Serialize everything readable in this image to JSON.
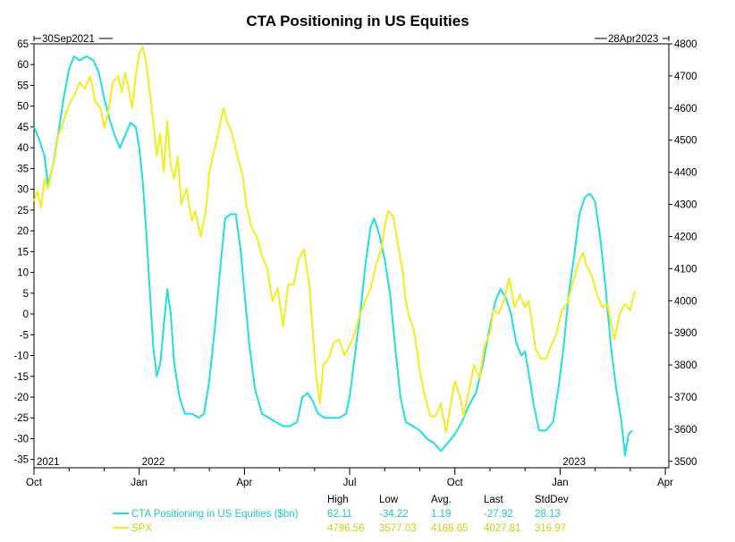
{
  "chart_data": {
    "type": "line",
    "title": "CTA Positioning in US Equities",
    "start_label": "30Sep2021",
    "end_label": "28Apr2023",
    "left_axis": {
      "ylim": [
        -37,
        65
      ],
      "ticks": [
        65,
        60,
        55,
        50,
        45,
        40,
        35,
        30,
        25,
        20,
        15,
        10,
        5,
        0,
        -5,
        -10,
        -15,
        -20,
        -25,
        -30,
        -35
      ]
    },
    "right_axis": {
      "ylim": [
        3480,
        4800
      ],
      "ticks": [
        4800,
        4700,
        4600,
        4500,
        4400,
        4300,
        4200,
        4100,
        4000,
        3900,
        3800,
        3700,
        3600,
        3500
      ]
    },
    "x_axis": {
      "range_months": [
        0,
        18.1
      ],
      "month_labels": [
        {
          "m": 0,
          "label": "Oct"
        },
        {
          "m": 3,
          "label": "Jan"
        },
        {
          "m": 6,
          "label": "Apr"
        },
        {
          "m": 9,
          "label": "Jul"
        },
        {
          "m": 12,
          "label": "Oct"
        },
        {
          "m": 15,
          "label": "Jan"
        },
        {
          "m": 18,
          "label": "Apr"
        }
      ],
      "year_labels": [
        {
          "m": 0,
          "label": "2021"
        },
        {
          "m": 3,
          "label": "2022"
        },
        {
          "m": 15,
          "label": "2023"
        }
      ]
    },
    "series": [
      {
        "name": "CTA Positioning in US Equities ($bn)",
        "axis": "left",
        "color": "#22dede",
        "points": [
          [
            0.0,
            45
          ],
          [
            0.15,
            42
          ],
          [
            0.3,
            38
          ],
          [
            0.4,
            31
          ],
          [
            0.55,
            36
          ],
          [
            0.7,
            44
          ],
          [
            0.85,
            52
          ],
          [
            1.0,
            59
          ],
          [
            1.15,
            62
          ],
          [
            1.3,
            61
          ],
          [
            1.5,
            62
          ],
          [
            1.7,
            61
          ],
          [
            1.85,
            58
          ],
          [
            2.0,
            52
          ],
          [
            2.15,
            47
          ],
          [
            2.3,
            43
          ],
          [
            2.45,
            40
          ],
          [
            2.6,
            43
          ],
          [
            2.75,
            46
          ],
          [
            2.9,
            45
          ],
          [
            3.0,
            40
          ],
          [
            3.1,
            32
          ],
          [
            3.2,
            20
          ],
          [
            3.3,
            6
          ],
          [
            3.4,
            -8
          ],
          [
            3.5,
            -15
          ],
          [
            3.6,
            -12
          ],
          [
            3.7,
            -3
          ],
          [
            3.8,
            6
          ],
          [
            3.9,
            0
          ],
          [
            4.0,
            -12
          ],
          [
            4.15,
            -20
          ],
          [
            4.3,
            -24
          ],
          [
            4.5,
            -24
          ],
          [
            4.7,
            -25
          ],
          [
            4.85,
            -24
          ],
          [
            5.0,
            -16
          ],
          [
            5.15,
            -4
          ],
          [
            5.3,
            10
          ],
          [
            5.45,
            23
          ],
          [
            5.6,
            24
          ],
          [
            5.75,
            24
          ],
          [
            5.9,
            15
          ],
          [
            6.0,
            5
          ],
          [
            6.15,
            -8
          ],
          [
            6.3,
            -18
          ],
          [
            6.5,
            -24
          ],
          [
            6.7,
            -25
          ],
          [
            6.9,
            -26
          ],
          [
            7.1,
            -27
          ],
          [
            7.3,
            -27
          ],
          [
            7.5,
            -26
          ],
          [
            7.65,
            -20
          ],
          [
            7.8,
            -19
          ],
          [
            7.95,
            -21
          ],
          [
            8.1,
            -24
          ],
          [
            8.3,
            -25
          ],
          [
            8.5,
            -25
          ],
          [
            8.7,
            -25
          ],
          [
            8.9,
            -24
          ],
          [
            9.0,
            -20
          ],
          [
            9.15,
            -10
          ],
          [
            9.3,
            0
          ],
          [
            9.45,
            12
          ],
          [
            9.6,
            21
          ],
          [
            9.7,
            23
          ],
          [
            9.85,
            19
          ],
          [
            10.0,
            13
          ],
          [
            10.15,
            5
          ],
          [
            10.3,
            -8
          ],
          [
            10.45,
            -20
          ],
          [
            10.6,
            -26
          ],
          [
            10.8,
            -27
          ],
          [
            11.0,
            -28
          ],
          [
            11.2,
            -30
          ],
          [
            11.4,
            -31
          ],
          [
            11.6,
            -33
          ],
          [
            11.8,
            -31
          ],
          [
            12.0,
            -29
          ],
          [
            12.2,
            -26
          ],
          [
            12.4,
            -22
          ],
          [
            12.6,
            -19
          ],
          [
            12.8,
            -12
          ],
          [
            13.0,
            -3
          ],
          [
            13.15,
            3
          ],
          [
            13.3,
            6
          ],
          [
            13.45,
            4
          ],
          [
            13.6,
            0
          ],
          [
            13.75,
            -7
          ],
          [
            13.9,
            -10
          ],
          [
            14.0,
            -9
          ],
          [
            14.1,
            -14
          ],
          [
            14.25,
            -22
          ],
          [
            14.4,
            -28
          ],
          [
            14.6,
            -28
          ],
          [
            14.8,
            -26
          ],
          [
            14.95,
            -18
          ],
          [
            15.1,
            -8
          ],
          [
            15.25,
            5
          ],
          [
            15.4,
            14
          ],
          [
            15.55,
            24
          ],
          [
            15.7,
            28
          ],
          [
            15.85,
            29
          ],
          [
            16.0,
            27
          ],
          [
            16.15,
            18
          ],
          [
            16.3,
            6
          ],
          [
            16.45,
            -8
          ],
          [
            16.6,
            -18
          ],
          [
            16.75,
            -26
          ],
          [
            16.85,
            -34
          ],
          [
            16.95,
            -29
          ],
          [
            17.05,
            -28
          ]
        ]
      },
      {
        "name": "SPX",
        "axis": "right",
        "color": "#f0ee1f",
        "points": [
          [
            0.0,
            4310
          ],
          [
            0.1,
            4340
          ],
          [
            0.2,
            4290
          ],
          [
            0.3,
            4380
          ],
          [
            0.4,
            4350
          ],
          [
            0.5,
            4400
          ],
          [
            0.6,
            4450
          ],
          [
            0.7,
            4520
          ],
          [
            0.85,
            4560
          ],
          [
            1.0,
            4610
          ],
          [
            1.15,
            4640
          ],
          [
            1.3,
            4680
          ],
          [
            1.45,
            4660
          ],
          [
            1.6,
            4700
          ],
          [
            1.75,
            4620
          ],
          [
            1.9,
            4600
          ],
          [
            2.0,
            4540
          ],
          [
            2.1,
            4580
          ],
          [
            2.25,
            4680
          ],
          [
            2.4,
            4700
          ],
          [
            2.5,
            4650
          ],
          [
            2.6,
            4710
          ],
          [
            2.7,
            4660
          ],
          [
            2.8,
            4600
          ],
          [
            2.9,
            4700
          ],
          [
            3.0,
            4770
          ],
          [
            3.1,
            4790
          ],
          [
            3.2,
            4740
          ],
          [
            3.3,
            4650
          ],
          [
            3.4,
            4560
          ],
          [
            3.5,
            4450
          ],
          [
            3.6,
            4520
          ],
          [
            3.7,
            4400
          ],
          [
            3.8,
            4560
          ],
          [
            3.9,
            4420
          ],
          [
            4.0,
            4380
          ],
          [
            4.1,
            4450
          ],
          [
            4.2,
            4300
          ],
          [
            4.35,
            4350
          ],
          [
            4.5,
            4250
          ],
          [
            4.6,
            4280
          ],
          [
            4.75,
            4200
          ],
          [
            4.9,
            4280
          ],
          [
            5.0,
            4400
          ],
          [
            5.1,
            4450
          ],
          [
            5.25,
            4520
          ],
          [
            5.4,
            4600
          ],
          [
            5.5,
            4560
          ],
          [
            5.65,
            4520
          ],
          [
            5.8,
            4450
          ],
          [
            5.95,
            4390
          ],
          [
            6.05,
            4300
          ],
          [
            6.2,
            4230
          ],
          [
            6.35,
            4200
          ],
          [
            6.5,
            4140
          ],
          [
            6.65,
            4100
          ],
          [
            6.8,
            4000
          ],
          [
            6.95,
            4040
          ],
          [
            7.1,
            3920
          ],
          [
            7.25,
            4050
          ],
          [
            7.4,
            4050
          ],
          [
            7.55,
            4130
          ],
          [
            7.7,
            4160
          ],
          [
            7.85,
            4050
          ],
          [
            7.95,
            3900
          ],
          [
            8.05,
            3760
          ],
          [
            8.15,
            3680
          ],
          [
            8.25,
            3800
          ],
          [
            8.4,
            3820
          ],
          [
            8.55,
            3870
          ],
          [
            8.7,
            3880
          ],
          [
            8.85,
            3830
          ],
          [
            9.0,
            3860
          ],
          [
            9.15,
            3900
          ],
          [
            9.3,
            3960
          ],
          [
            9.45,
            4000
          ],
          [
            9.6,
            4040
          ],
          [
            9.75,
            4110
          ],
          [
            9.9,
            4160
          ],
          [
            10.0,
            4230
          ],
          [
            10.1,
            4280
          ],
          [
            10.25,
            4260
          ],
          [
            10.4,
            4160
          ],
          [
            10.5,
            4100
          ],
          [
            10.6,
            4000
          ],
          [
            10.7,
            3950
          ],
          [
            10.85,
            3900
          ],
          [
            11.0,
            3780
          ],
          [
            11.15,
            3700
          ],
          [
            11.3,
            3640
          ],
          [
            11.45,
            3640
          ],
          [
            11.6,
            3680
          ],
          [
            11.75,
            3590
          ],
          [
            11.9,
            3690
          ],
          [
            12.0,
            3750
          ],
          [
            12.15,
            3700
          ],
          [
            12.25,
            3640
          ],
          [
            12.4,
            3720
          ],
          [
            12.55,
            3800
          ],
          [
            12.7,
            3760
          ],
          [
            12.85,
            3860
          ],
          [
            13.0,
            3900
          ],
          [
            13.1,
            3970
          ],
          [
            13.25,
            3960
          ],
          [
            13.4,
            4000
          ],
          [
            13.55,
            4070
          ],
          [
            13.7,
            3980
          ],
          [
            13.85,
            4020
          ],
          [
            14.0,
            3980
          ],
          [
            14.1,
            4000
          ],
          [
            14.2,
            3930
          ],
          [
            14.3,
            3850
          ],
          [
            14.45,
            3820
          ],
          [
            14.6,
            3820
          ],
          [
            14.75,
            3860
          ],
          [
            14.9,
            3900
          ],
          [
            15.05,
            3970
          ],
          [
            15.2,
            3990
          ],
          [
            15.35,
            4050
          ],
          [
            15.5,
            4110
          ],
          [
            15.65,
            4150
          ],
          [
            15.75,
            4110
          ],
          [
            15.9,
            4080
          ],
          [
            16.05,
            4020
          ],
          [
            16.2,
            3980
          ],
          [
            16.35,
            3990
          ],
          [
            16.45,
            3930
          ],
          [
            16.55,
            3880
          ],
          [
            16.7,
            3960
          ],
          [
            16.85,
            3990
          ],
          [
            17.0,
            3970
          ],
          [
            17.1,
            4020
          ],
          [
            17.15,
            4030
          ]
        ]
      }
    ],
    "stats": {
      "headers": [
        "High",
        "Low",
        "Avg.",
        "Last",
        "StdDev"
      ],
      "rows": [
        {
          "name": "CTA Positioning in US Equities ($bn)",
          "color": "#22dede",
          "values": [
            "62.11",
            "-34.22",
            "1.19",
            "-27.92",
            "28.13"
          ]
        },
        {
          "name": "SPX",
          "color": "#d4d21a",
          "values": [
            "4796.56",
            "3577.03",
            "4168.65",
            "4027.81",
            "316.97"
          ]
        }
      ]
    }
  }
}
